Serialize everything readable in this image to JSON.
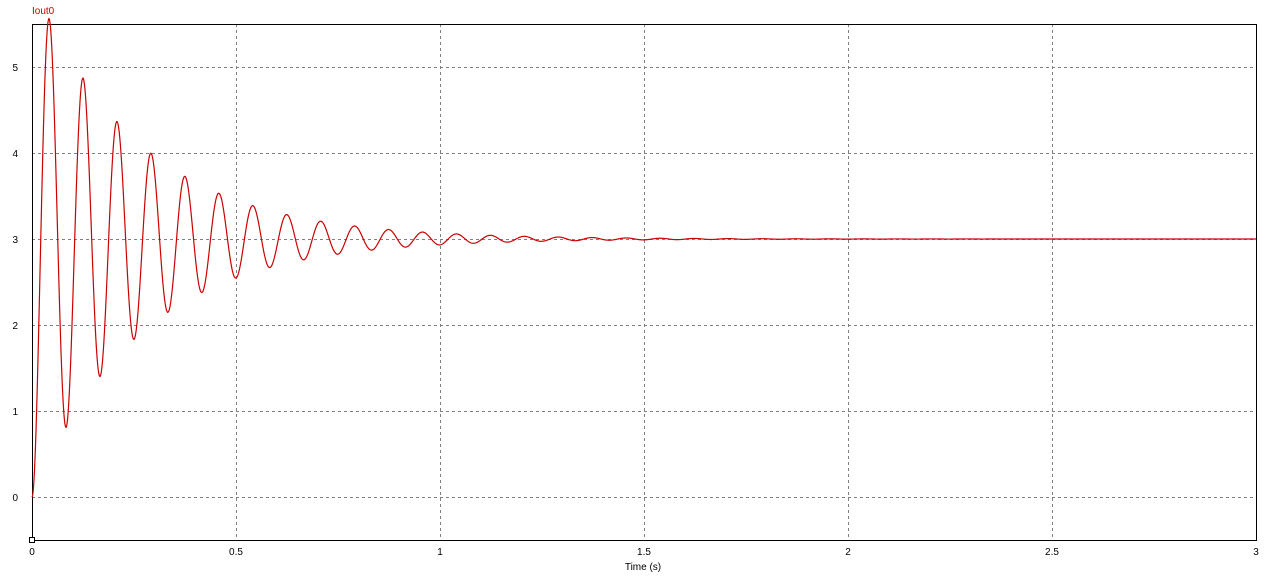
{
  "colors": {
    "trace": "#cc0000",
    "grid": "#808080",
    "frame": "#000000"
  },
  "chart_data": {
    "type": "line",
    "series": [
      {
        "name": "Iout0",
        "model": {
          "final_value": 3,
          "damping_ratio": 0.05,
          "natural_frequency_rad_s": 75.6
        }
      }
    ],
    "xlabel": "Time (s)",
    "ylabel": "",
    "xlim": [
      0,
      3
    ],
    "ylim": [
      -0.5,
      5.5
    ],
    "x_ticks": [
      "0",
      "0.5",
      "1",
      "1.5",
      "2",
      "2.5",
      "3"
    ],
    "y_ticks": [
      "0",
      "1",
      "2",
      "3",
      "4",
      "5"
    ],
    "x_tick_values": [
      0,
      0.5,
      1,
      1.5,
      2,
      2.5,
      3
    ],
    "y_tick_values": [
      0,
      1,
      2,
      3,
      4,
      5
    ],
    "grid": true,
    "legend": "top-left"
  }
}
